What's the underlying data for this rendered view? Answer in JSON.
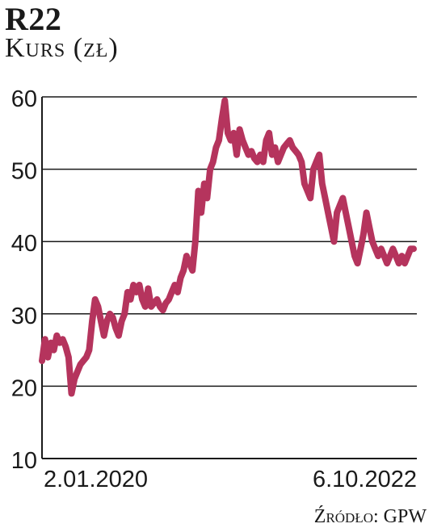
{
  "header": {
    "title": "R22",
    "subtitle": "Kurs (zł)"
  },
  "source": "Źródło: GPW",
  "colors": {
    "line": "#b5345d",
    "grid": "#1a1a1a",
    "text": "#1a1a1a"
  },
  "chart_data": {
    "type": "line",
    "title": "R22",
    "subtitle": "Kurs (zł)",
    "xlabel": "",
    "ylabel": "",
    "x_start_label": "2.01.2020",
    "x_end_label": "6.10.2022",
    "ylim": [
      10,
      60
    ],
    "yticks": [
      10,
      20,
      30,
      40,
      50,
      60
    ],
    "grid": true,
    "series": [
      {
        "values": [
          23.5,
          26.5,
          24,
          26,
          25,
          27,
          26,
          26.5,
          25.5,
          24,
          19,
          21,
          22,
          23,
          23.5,
          24,
          25,
          29,
          32,
          31,
          29,
          27,
          29,
          30,
          29.5,
          28,
          27,
          29,
          30,
          33,
          32,
          34,
          33,
          34,
          32,
          31,
          33.5,
          31,
          31.5,
          32,
          31,
          30.5,
          31.5,
          32,
          33,
          34,
          33,
          35,
          36,
          38,
          37,
          36,
          40,
          47,
          44,
          48,
          46,
          50,
          51,
          53,
          54,
          57,
          59.5,
          55,
          54,
          55,
          52,
          55.5,
          54,
          53,
          52,
          52.5,
          51.5,
          51,
          52,
          51,
          54,
          55,
          52,
          53,
          51,
          52,
          53,
          53.5,
          54,
          53,
          52.5,
          52,
          51,
          48,
          47,
          46,
          50,
          51,
          52,
          48,
          46,
          44,
          42,
          40,
          44,
          45,
          46,
          44,
          42,
          40,
          38,
          37,
          39,
          41,
          44,
          42,
          40,
          39,
          38,
          39,
          38,
          37,
          38,
          39,
          38,
          37,
          38,
          37,
          38,
          39,
          39
        ]
      }
    ]
  }
}
